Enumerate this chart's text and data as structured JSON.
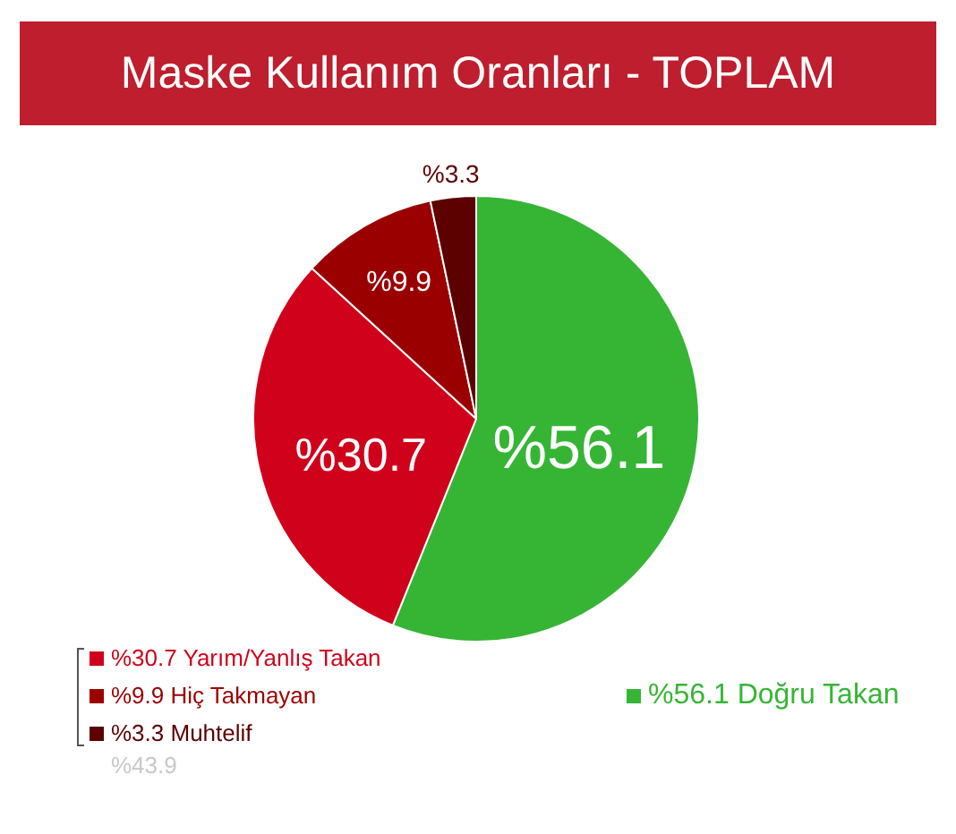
{
  "chart_data": {
    "type": "pie",
    "title": "Maske Kullanım Oranları - TOPLAM",
    "categories": [
      "Doğru Takan",
      "Yarım/Yanlış Takan",
      "Hiç Takmayan",
      "Muhtelif"
    ],
    "values": [
      56.1,
      30.7,
      9.9,
      3.3
    ],
    "value_labels": [
      "%56.1",
      "%30.7",
      "%9.9",
      "%3.3"
    ],
    "colors": [
      "#36b535",
      "#d0021b",
      "#9b0000",
      "#5c0000"
    ],
    "legend": "bottom",
    "annotations": [
      "%43.9"
    ]
  }
}
